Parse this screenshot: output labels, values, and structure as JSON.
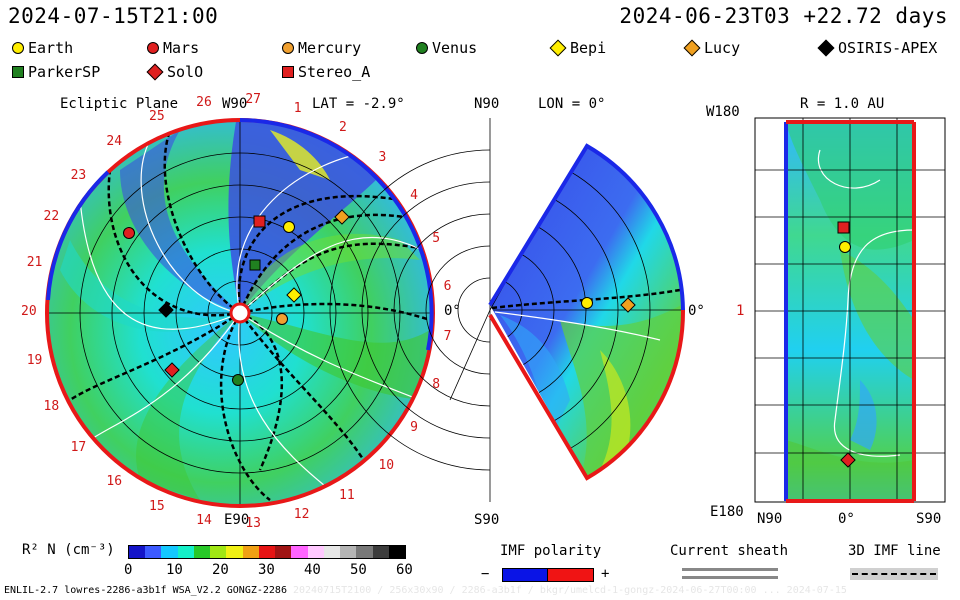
{
  "header": {
    "date_left": "2024-07-15T21:00",
    "date_right": "2024-06-23T03 +22.72 days"
  },
  "objects": [
    {
      "name": "Earth",
      "marker": "circle",
      "color": "#ffee00"
    },
    {
      "name": "Mars",
      "marker": "circle",
      "color": "#e02020"
    },
    {
      "name": "Mercury",
      "marker": "circle",
      "color": "#f0a030"
    },
    {
      "name": "Venus",
      "marker": "circle",
      "color": "#208020"
    },
    {
      "name": "Bepi",
      "marker": "diamond",
      "color": "#ffee00"
    },
    {
      "name": "Lucy",
      "marker": "diamond",
      "color": "#f0a020"
    },
    {
      "name": "OSIRIS-APEX",
      "marker": "diamond",
      "color": "#000000"
    },
    {
      "name": "ParkerSP",
      "marker": "square",
      "color": "#208020"
    },
    {
      "name": "SolO",
      "marker": "diamond",
      "color": "#e02020"
    },
    {
      "name": "Stereo_A",
      "marker": "square",
      "color": "#e02020"
    }
  ],
  "panels": {
    "ecliptic": {
      "title": "Ecliptic Plane",
      "w90": "W90",
      "lat": "LAT = -2.9°",
      "zero": "0°",
      "e90": "E90",
      "carrington_ticks": [
        "20",
        "21",
        "22",
        "23",
        "24",
        "25",
        "26",
        "27",
        "1",
        "2",
        "3",
        "4",
        "5",
        "6",
        "7",
        "8",
        "9",
        "10",
        "11",
        "12",
        "13",
        "14",
        "15",
        "16",
        "17",
        "18",
        "19"
      ]
    },
    "meridional": {
      "n90": "N90",
      "lon": "LON = 0°",
      "zero": "0°",
      "s90": "S90"
    },
    "shell": {
      "w180": "W180",
      "radius": "R = 1.0 AU",
      "one": "1",
      "e180": "E180",
      "x_ticks": [
        "N90",
        "0°",
        "S90"
      ]
    }
  },
  "colorbar": {
    "label": "R² N (cm⁻³)",
    "ticks": [
      "0",
      "10",
      "20",
      "30",
      "40",
      "50",
      "60"
    ],
    "colors": [
      "#1414c8",
      "#3c5aff",
      "#14c8ff",
      "#14f0c8",
      "#28c828",
      "#a0e614",
      "#f0f014",
      "#f0a014",
      "#e61414",
      "#a01414",
      "#ff64ff",
      "#ffc8ff",
      "#e6e6e6",
      "#b4b4b4",
      "#787878",
      "#3c3c3c",
      "#000000"
    ]
  },
  "imf_polarity": {
    "label": "IMF polarity",
    "minus": "−",
    "plus": "+",
    "neg_color": "#0a14e6",
    "pos_color": "#f01414"
  },
  "current_sheath": {
    "label": "Current sheath"
  },
  "imf_line": {
    "label": "3D IMF line"
  },
  "footer": {
    "left": "ENLIL-2.7 lowres-2286-a3b1f WSA_V2.2 GONGZ-2286",
    "ghost": "20240715T2100 / 256x30x90 / 2286-a3b1f / bkgr/umelcd-1-gongz-2024-06-27T00:00 ... 2024-07-15"
  }
}
